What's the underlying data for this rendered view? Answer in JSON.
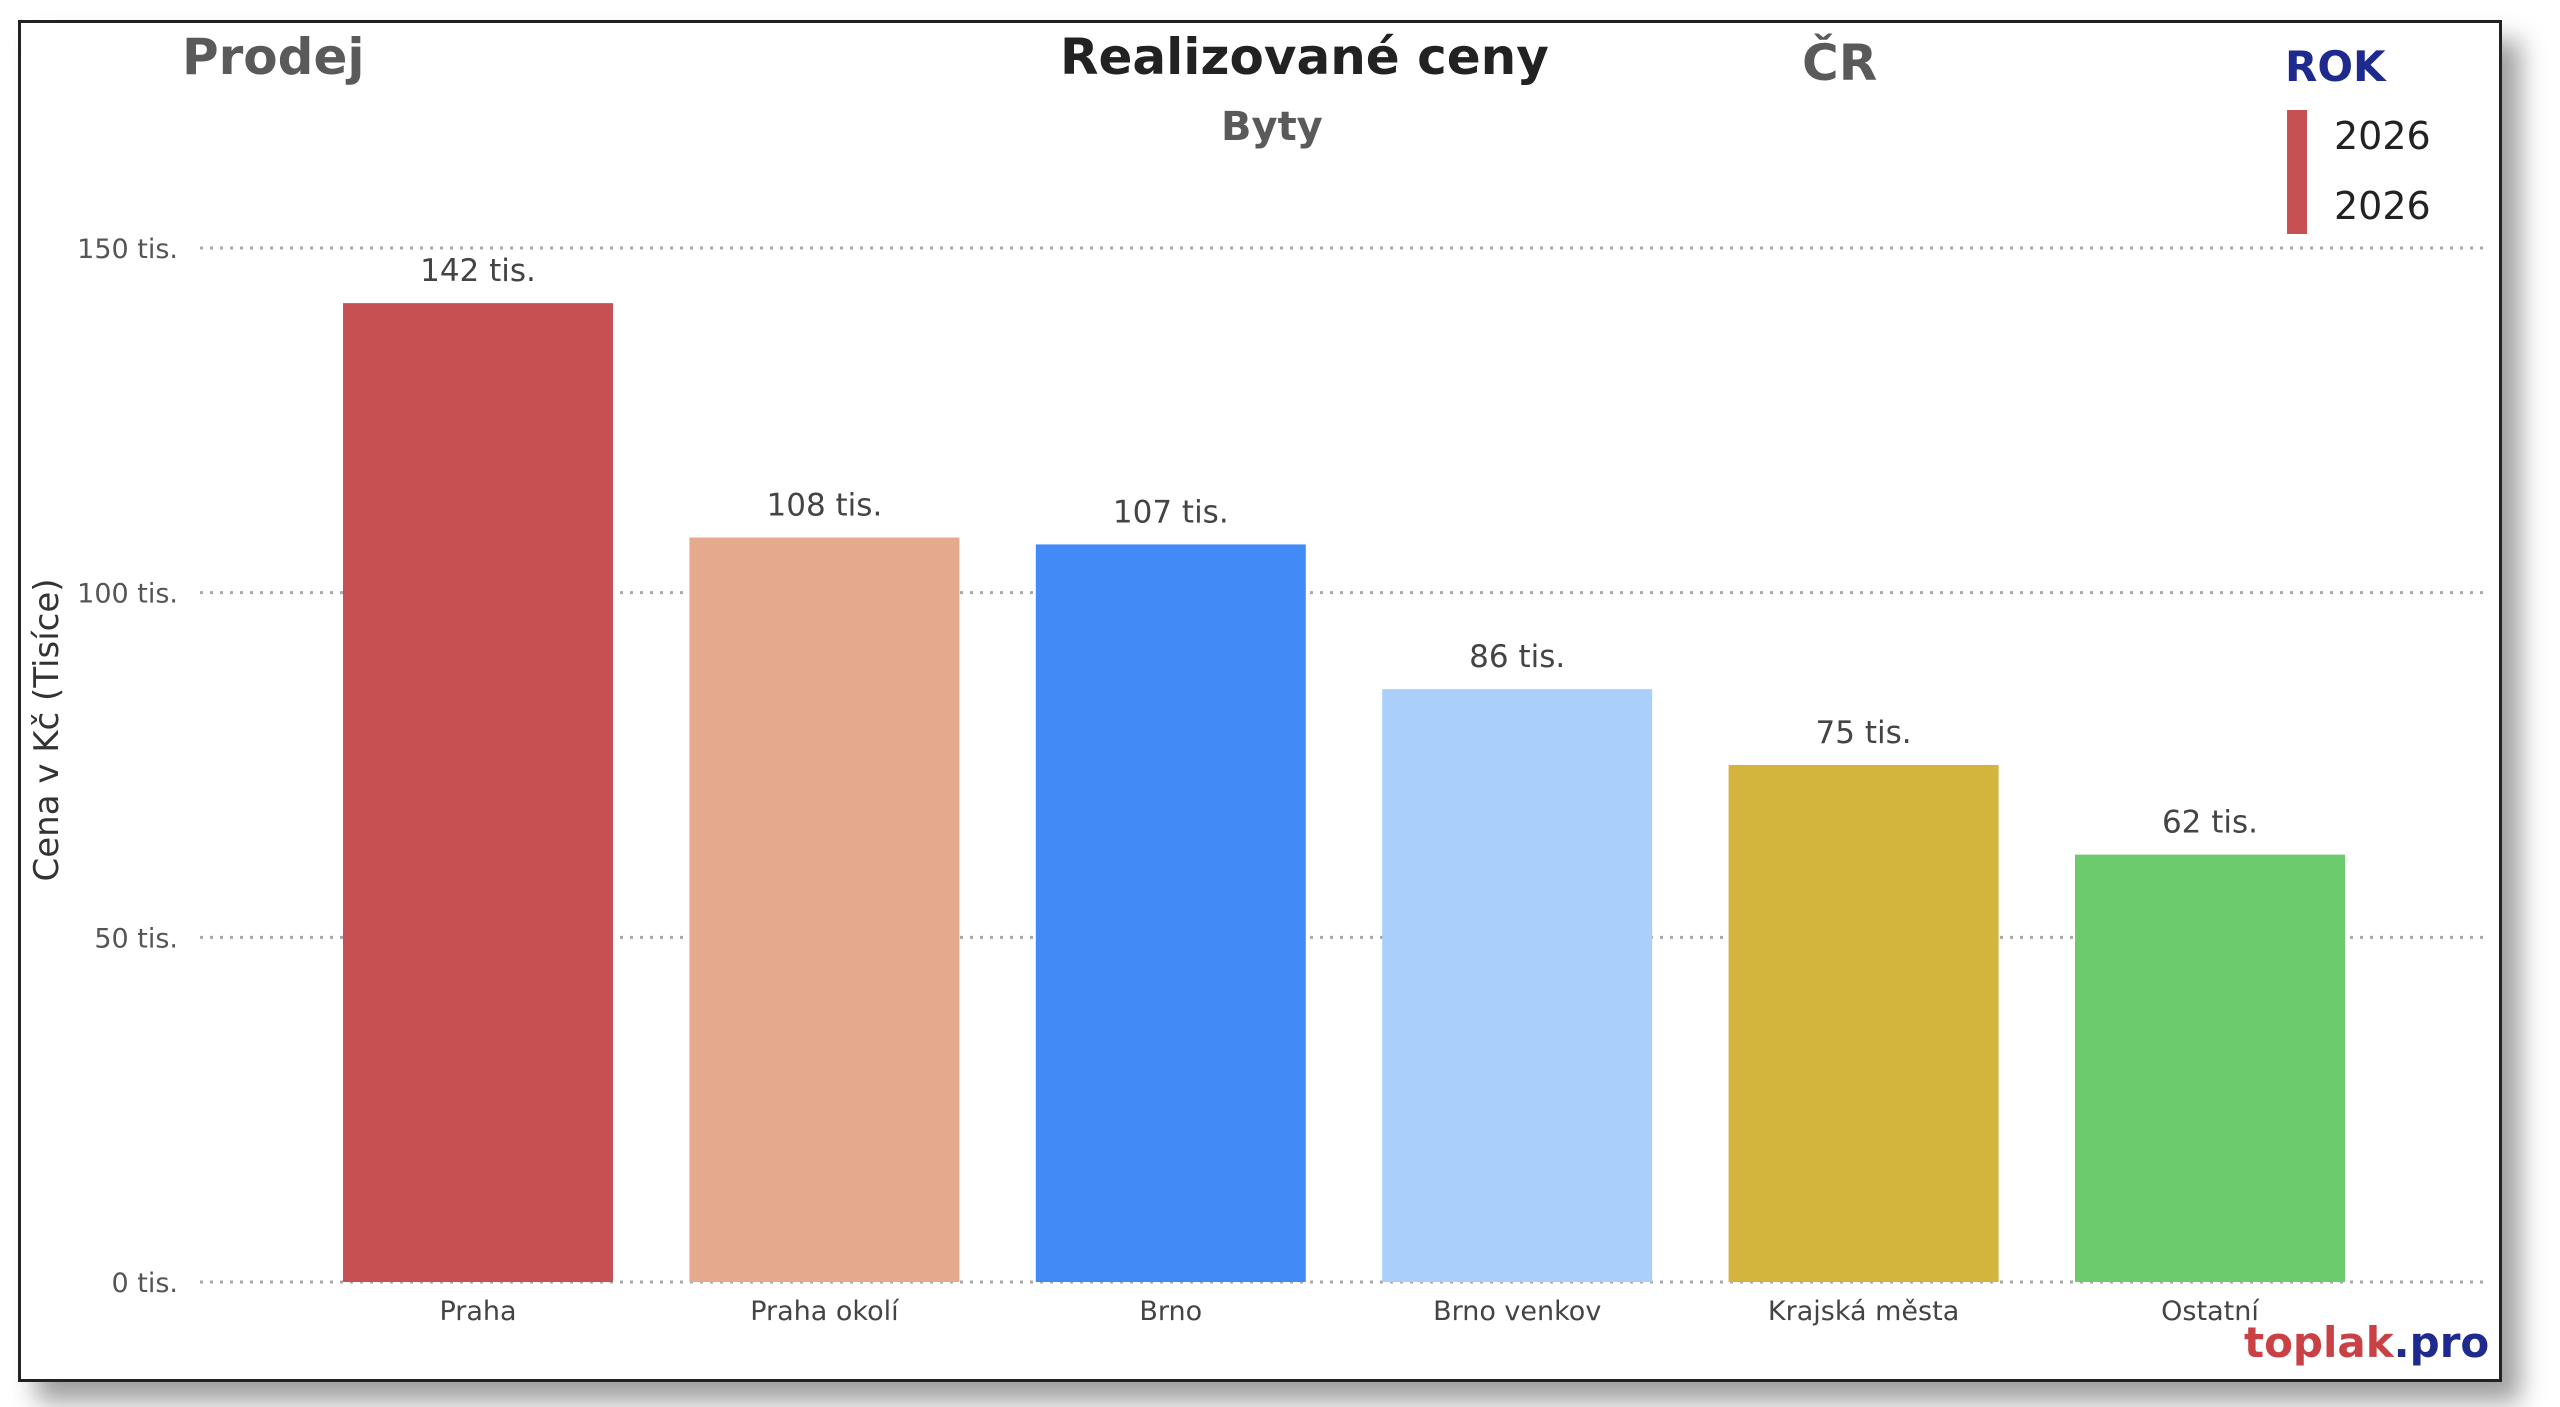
{
  "header": {
    "left_label": "Prodej",
    "title": "Realizované ceny",
    "subtitle": "Byty",
    "region": "ČR"
  },
  "legend": {
    "title": "ROK",
    "items": [
      "2026",
      "2026"
    ],
    "color": "#c65052"
  },
  "brand": {
    "part1": "toplak",
    "part2": ".pro"
  },
  "chart_data": {
    "type": "bar",
    "categories": [
      "Praha",
      "Praha okolí",
      "Brno",
      "Brno venkov",
      "Krajská města",
      "Ostatní"
    ],
    "values": [
      142,
      108,
      107,
      86,
      75,
      62
    ],
    "data_labels": [
      "142 tis.",
      "108 tis.",
      "107 tis.",
      "86 tis.",
      "75 tis.",
      "62 tis."
    ],
    "colors": [
      "#c65052",
      "#e5aa8e",
      "#428bf6",
      "#abcffb",
      "#d3b53d",
      "#6ccb6d"
    ],
    "ylabel": "Cena v Kč (Tisíce)",
    "yticks": [
      0,
      50,
      100,
      150
    ],
    "ytick_labels": [
      "0 tis.",
      "50 tis.",
      "100 tis.",
      "150 tis."
    ],
    "ylim": [
      0,
      150
    ],
    "grid": true,
    "legend_position": "top-right"
  }
}
